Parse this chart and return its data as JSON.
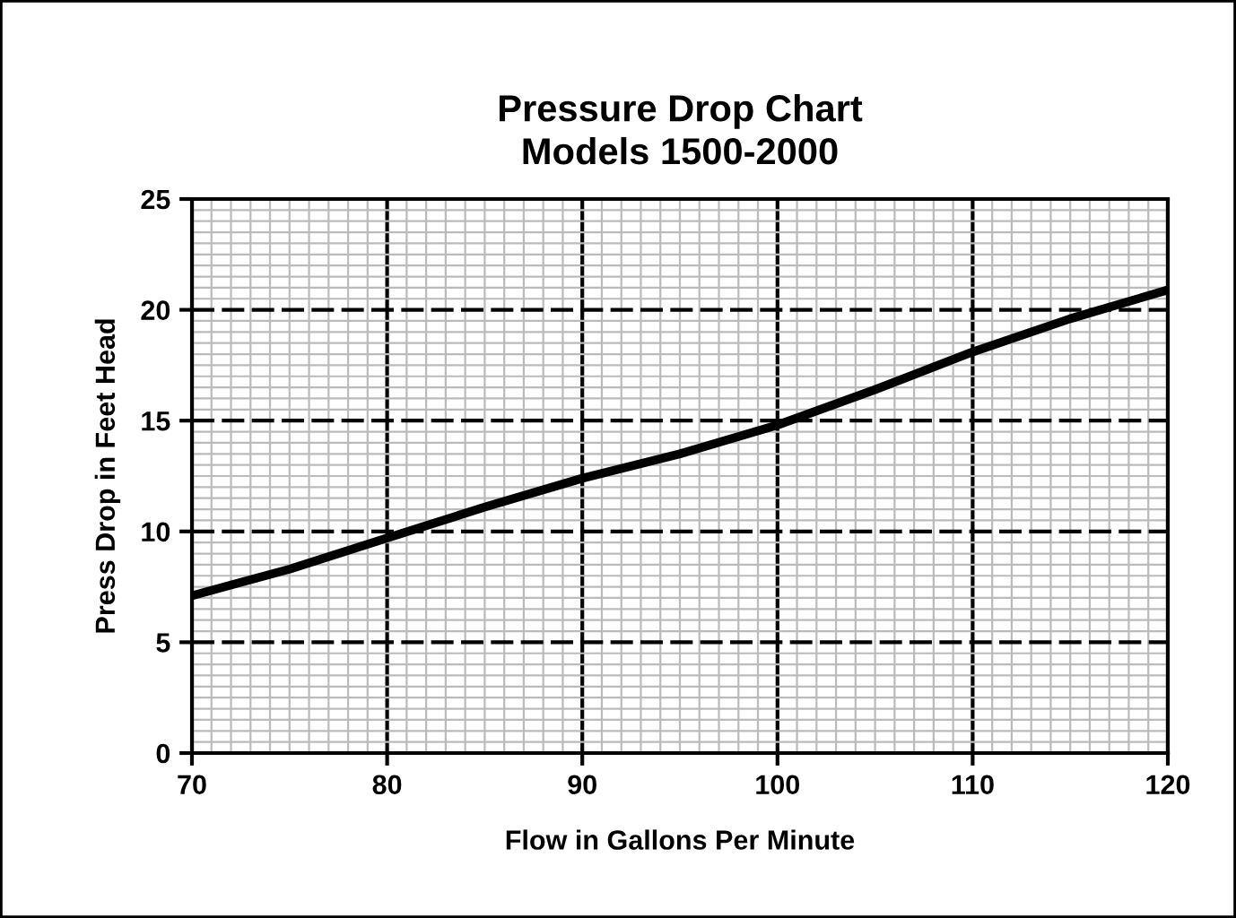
{
  "chart_data": {
    "type": "line",
    "title": "Pressure Drop Chart\nModels 1500-2000",
    "xlabel": "Flow in Gallons Per Minute",
    "ylabel": "Press Drop in Feet Head",
    "x": [
      70,
      75,
      80,
      85,
      90,
      95,
      100,
      105,
      110,
      115,
      120
    ],
    "series": [
      {
        "color": "#000000",
        "values": [
          7.1,
          8.3,
          9.7,
          11.1,
          12.4,
          13.5,
          14.8,
          16.4,
          18.1,
          19.6,
          20.9
        ]
      }
    ],
    "xlim": [
      70,
      120
    ],
    "xticks": [
      70,
      80,
      90,
      100,
      110,
      120
    ],
    "ylim": [
      0,
      25
    ],
    "yticks": [
      0,
      5,
      10,
      15,
      20,
      25
    ],
    "grid": true,
    "marker": "none",
    "line_style": "solid"
  }
}
